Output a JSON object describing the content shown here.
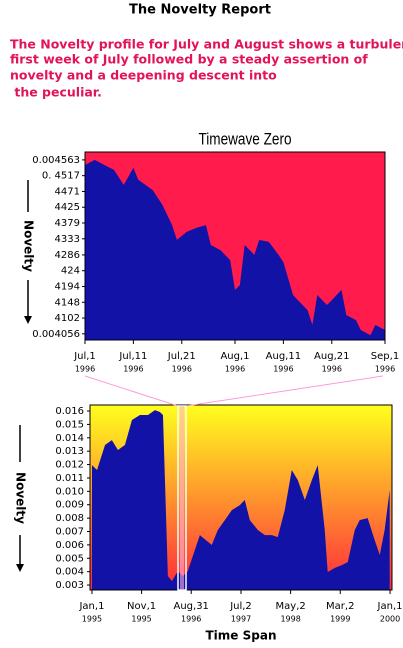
{
  "header": {
    "title": "The Novelty Report",
    "text": [
      "The Novelty profile for July and August shows a turbulent",
      "first week of July followed by a steady assertion of",
      "novelty and a deepening descent into",
      " the peculiar."
    ]
  },
  "chart_data": [
    {
      "type": "area",
      "title": "Timewave Zero",
      "y_label": "Novelty",
      "color": "#1212a6",
      "background": "#ff1c4c",
      "x": [
        0,
        2,
        4,
        6,
        8,
        10,
        11,
        14,
        16,
        18,
        19,
        21,
        23,
        25,
        26,
        28,
        30,
        31,
        32,
        33,
        35,
        36,
        38,
        40,
        41,
        43,
        44,
        46,
        47,
        48,
        50,
        51,
        53,
        54,
        56,
        57,
        59,
        60,
        62
      ],
      "values": [
        0.004548,
        0.004563,
        0.004548,
        0.004534,
        0.00449,
        0.00454,
        0.004505,
        0.004475,
        0.004432,
        0.004373,
        0.00433,
        0.004353,
        0.004365,
        0.004373,
        0.004315,
        0.0043,
        0.004271,
        0.004184,
        0.004198,
        0.004315,
        0.004286,
        0.00433,
        0.004324,
        0.004286,
        0.004265,
        0.004169,
        0.004154,
        0.004125,
        0.004082,
        0.004169,
        0.00414,
        0.004154,
        0.004184,
        0.004111,
        0.004096,
        0.004067,
        0.004052,
        0.004082,
        0.004067
      ],
      "xlim": [
        0,
        62
      ],
      "xticks": [
        {
          "value": 0,
          "label": "Jul,1",
          "year": "1996"
        },
        {
          "value": 10,
          "label": "Jul,11",
          "year": "1996"
        },
        {
          "value": 20,
          "label": "Jul,21",
          "year": "1996"
        },
        {
          "value": 31,
          "label": "Aug,1",
          "year": "1996"
        },
        {
          "value": 41,
          "label": "Aug,11",
          "year": "1996"
        },
        {
          "value": 51,
          "label": "Aug,21",
          "year": "1996"
        },
        {
          "value": 62,
          "label": "Sep,1",
          "year": "1996"
        }
      ],
      "ylim": [
        0.004038,
        0.004586
      ],
      "yticks": [
        0.004563,
        {
          "value": 0.004517,
          "label": "0.  4517"
        },
        {
          "value": 0.004471,
          "label": "4471"
        },
        {
          "value": 0.004425,
          "label": "4425"
        },
        {
          "value": 0.004379,
          "label": "4379"
        },
        {
          "value": 0.004333,
          "label": "4333"
        },
        {
          "value": 0.004286,
          "label": "4286"
        },
        {
          "value": 0.00424,
          "label": "424"
        },
        {
          "value": 0.004194,
          "label": "4194"
        },
        {
          "value": 0.004148,
          "label": "4148"
        },
        {
          "value": 0.004102,
          "label": "4102"
        },
        0.004056
      ]
    },
    {
      "type": "area",
      "x_label": "Time Span",
      "y_label": "Novelty",
      "color": "#1212a6",
      "background": [
        "#ffff1e",
        "#ff2a3c"
      ],
      "x": [
        0,
        31,
        80,
        122,
        159,
        202,
        245,
        294,
        343,
        386,
        416,
        435,
        465,
        490,
        526,
        557,
        587,
        630,
        661,
        698,
        734,
        771,
        814,
        857,
        906,
        936,
        967,
        1016,
        1059,
        1102,
        1138,
        1181,
        1224,
        1261,
        1304,
        1347,
        1383,
        1426,
        1444,
        1487,
        1530,
        1567,
        1610,
        1640,
        1689,
        1732,
        1763,
        1793,
        1824
      ],
      "values": [
        0.01196,
        0.01159,
        0.01346,
        0.01383,
        0.01309,
        0.01346,
        0.01533,
        0.0157,
        0.0157,
        0.01607,
        0.01593,
        0.0157,
        0.00367,
        0.00329,
        0.00404,
        0.00367,
        0.00404,
        0.00561,
        0.00673,
        0.00636,
        0.00599,
        0.00711,
        0.00785,
        0.0086,
        0.00897,
        0.00935,
        0.00785,
        0.00711,
        0.00673,
        0.00673,
        0.00658,
        0.0086,
        0.01159,
        0.01084,
        0.00935,
        0.01084,
        0.01196,
        0.00711,
        0.00397,
        0.00427,
        0.00449,
        0.00471,
        0.00711,
        0.00785,
        0.008,
        0.00636,
        0.00524,
        0.00711,
        0.0101
      ],
      "xlim": [
        -12,
        1838
      ],
      "xticks": [
        {
          "value": 0,
          "label": "Jan,1",
          "year": "1995"
        },
        {
          "value": 304,
          "label": "Nov,1",
          "year": "1995"
        },
        {
          "value": 608,
          "label": "Aug,31",
          "year": "1996"
        },
        {
          "value": 913,
          "label": "Jul,2",
          "year": "1997"
        },
        {
          "value": 1217,
          "label": "May,2",
          "year": "1998"
        },
        {
          "value": 1521,
          "label": "Mar,2",
          "year": "1999"
        },
        {
          "value": 1826,
          "label": "Jan,1",
          "year": "2000"
        }
      ],
      "ylim": [
        0.00263,
        0.01645
      ],
      "yticks": [
        0.016,
        0.015,
        0.014,
        0.013,
        0.012,
        0.011,
        {
          "value": 0.01,
          "label": "0.010"
        },
        0.009,
        0.008,
        0.007,
        0.006,
        0.005,
        0.004,
        0.003
      ]
    }
  ]
}
